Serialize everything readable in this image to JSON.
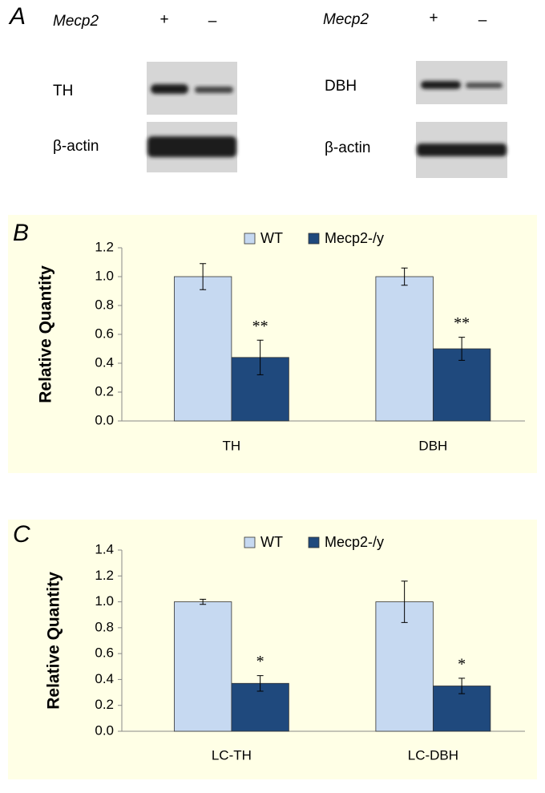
{
  "panel_a": {
    "letter": "A",
    "left": {
      "gene": "Mecp2",
      "plus": "+",
      "minus": "–",
      "rows": [
        "TH",
        "β-actin"
      ]
    },
    "right": {
      "gene": "Mecp2",
      "plus": "+",
      "minus": "–",
      "rows": [
        "DBH",
        "β-actin"
      ]
    }
  },
  "chart_data": [
    {
      "type": "bar",
      "panel": "B",
      "ylabel": "Relative Quantity",
      "categories": [
        "TH",
        "DBH"
      ],
      "series": [
        {
          "name": "WT",
          "color": "#c6d9f1",
          "values": [
            1.0,
            1.0
          ],
          "errors": [
            0.09,
            0.06
          ]
        },
        {
          "name": "Mecp2-/y",
          "color": "#1f497d",
          "values": [
            0.44,
            0.5
          ],
          "errors": [
            0.12,
            0.08
          ],
          "annotations": [
            "**",
            "**"
          ]
        }
      ],
      "ylim": [
        0,
        1.2
      ],
      "yticks": [
        {
          "value": 0,
          "label": "0.0"
        },
        0.2,
        0.4,
        0.6,
        0.8,
        {
          "value": 1,
          "label": "1.0"
        },
        1.2
      ],
      "grid": false,
      "legend": "top"
    },
    {
      "type": "bar",
      "panel": "C",
      "ylabel": "Relative Quantity",
      "categories": [
        "LC-TH",
        "LC-DBH"
      ],
      "series": [
        {
          "name": "WT",
          "color": "#c6d9f1",
          "values": [
            1.0,
            1.0
          ],
          "errors": [
            0.02,
            0.16
          ]
        },
        {
          "name": "Mecp2-/y",
          "color": "#1f497d",
          "values": [
            0.37,
            0.35
          ],
          "errors": [
            0.06,
            0.06
          ],
          "annotations": [
            "*",
            "*"
          ]
        }
      ],
      "ylim": [
        0,
        1.4
      ],
      "yticks": [
        {
          "value": 0,
          "label": "0.0"
        },
        0.2,
        0.4,
        0.6,
        0.8,
        {
          "value": 1,
          "label": "1.0"
        },
        1.2,
        1.4
      ],
      "grid": false,
      "legend": "top"
    }
  ]
}
